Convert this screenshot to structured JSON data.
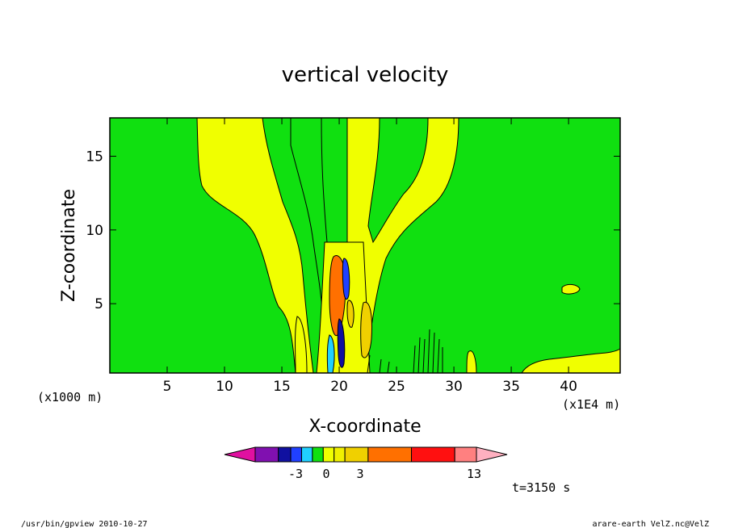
{
  "chart_data": {
    "type": "contour",
    "title": "vertical velocity",
    "xlabel": "X-coordinate",
    "ylabel": "Z-coordinate",
    "x_unit": "(x1E4 m)",
    "y_unit": "(x1000 m)",
    "xlim": [
      0,
      44.5
    ],
    "ylim": [
      0.3,
      17.6
    ],
    "x_ticks": [
      5,
      10,
      15,
      20,
      25,
      30,
      35,
      40
    ],
    "y_ticks": [
      5,
      10,
      15
    ],
    "time_label": "t=3150 s",
    "colorbar": {
      "tick_labels": [
        "-3",
        "0",
        "3",
        "13"
      ],
      "tick_values": [
        -3,
        0,
        3,
        13
      ],
      "colors": [
        "#e010a0",
        "#8010b0",
        "#1010a0",
        "#2040ff",
        "#20d0ff",
        "#10e010",
        "#f0ff00",
        "#f0f000",
        "#f0d000",
        "#ff7000",
        "#ff1010",
        "#ff8080",
        "#ffb0c0"
      ],
      "background_color": "#10e010",
      "positive_color": "#f0ff00",
      "strong_color": "#ff7000"
    }
  },
  "footer": {
    "left": "/usr/bin/gpview  2010-10-27",
    "right": "arare-earth_VelZ.nc@VelZ"
  }
}
